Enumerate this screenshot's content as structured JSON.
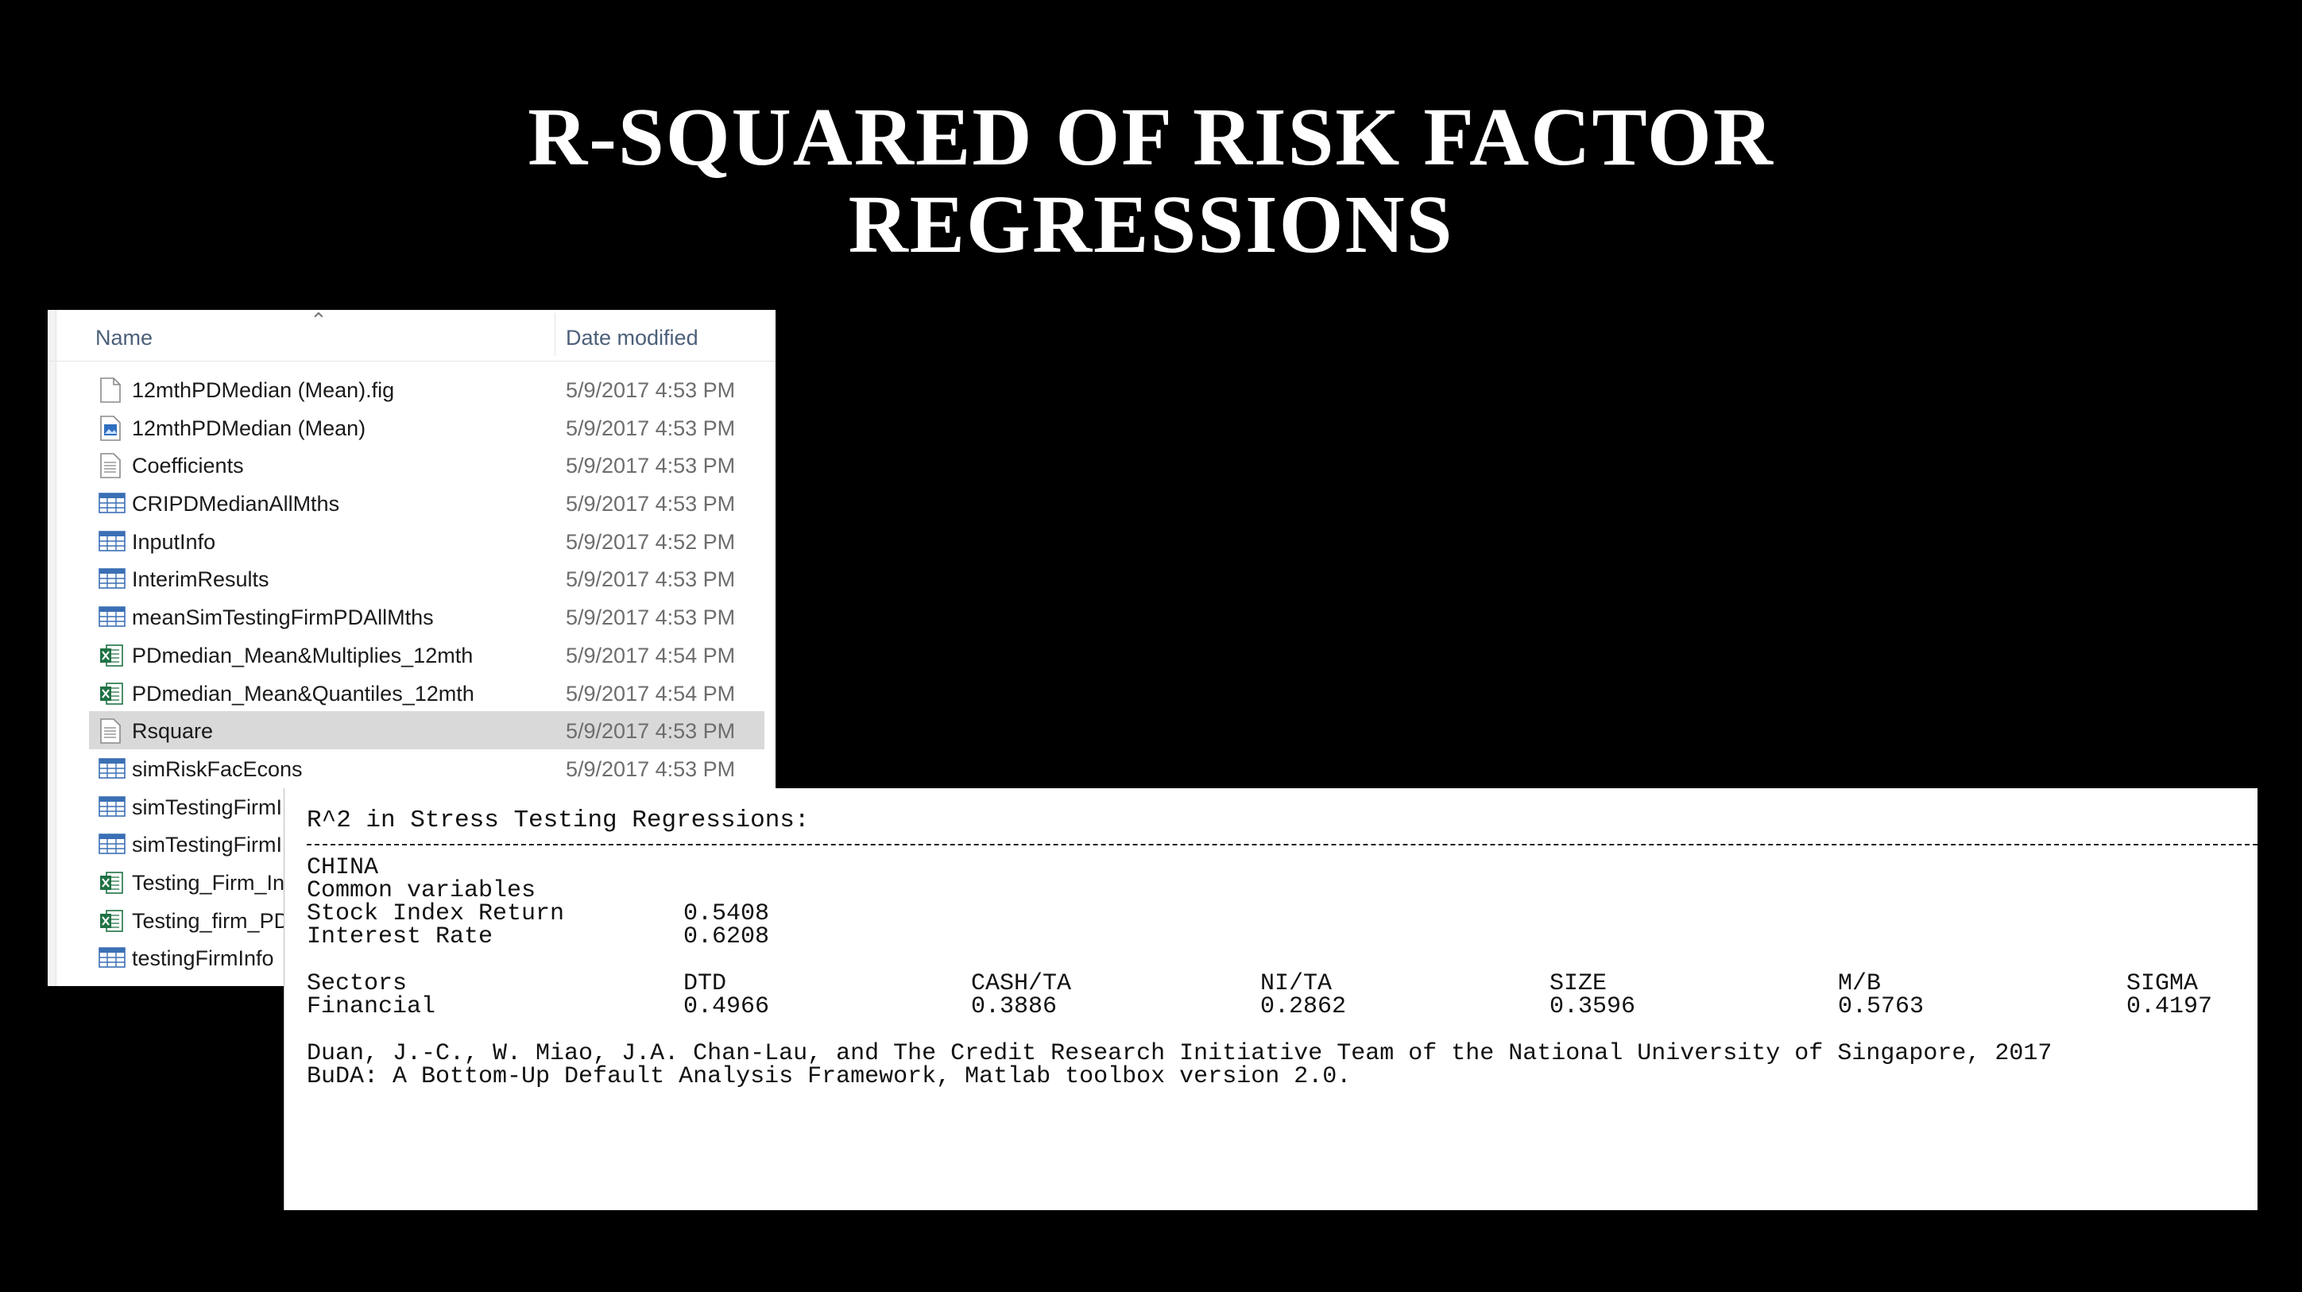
{
  "slide": {
    "title_line1": "R-SQUARED OF RISK FACTOR",
    "title_line2": "REGRESSIONS"
  },
  "explorer": {
    "columns": {
      "name": "Name",
      "date": "Date modified"
    },
    "files": [
      {
        "name": "12mthPDMedian (Mean).fig",
        "date": "5/9/2017 4:53 PM",
        "icon": "fig-file-icon"
      },
      {
        "name": "12mthPDMedian (Mean)",
        "date": "5/9/2017 4:53 PM",
        "icon": "image-file-icon"
      },
      {
        "name": "Coefficients",
        "date": "5/9/2017 4:53 PM",
        "icon": "text-file-icon"
      },
      {
        "name": "CRIPDMedianAllMths",
        "date": "5/9/2017 4:53 PM",
        "icon": "table-file-icon"
      },
      {
        "name": "InputInfo",
        "date": "5/9/2017 4:52 PM",
        "icon": "table-file-icon"
      },
      {
        "name": "InterimResults",
        "date": "5/9/2017 4:53 PM",
        "icon": "table-file-icon"
      },
      {
        "name": "meanSimTestingFirmPDAllMths",
        "date": "5/9/2017 4:53 PM",
        "icon": "table-file-icon"
      },
      {
        "name": "PDmedian_Mean&Multiplies_12mth",
        "date": "5/9/2017 4:54 PM",
        "icon": "excel-file-icon"
      },
      {
        "name": "PDmedian_Mean&Quantiles_12mth",
        "date": "5/9/2017 4:54 PM",
        "icon": "excel-file-icon"
      },
      {
        "name": "Rsquare",
        "date": "5/9/2017 4:53 PM",
        "icon": "text-file-icon",
        "selected": true
      },
      {
        "name": "simRiskFacEcons",
        "date": "5/9/2017 4:53 PM",
        "icon": "table-file-icon"
      },
      {
        "name": "simTestingFirmI",
        "date": "",
        "icon": "table-file-icon"
      },
      {
        "name": "simTestingFirmI",
        "date": "",
        "icon": "table-file-icon"
      },
      {
        "name": "Testing_Firm_Ini",
        "date": "",
        "icon": "excel-file-icon"
      },
      {
        "name": "Testing_firm_PD",
        "date": "",
        "icon": "excel-file-icon"
      },
      {
        "name": "testingFirmInfo",
        "date": "",
        "icon": "table-file-icon"
      }
    ]
  },
  "console": {
    "heading": "R^2 in Stress Testing Regressions:",
    "region": "CHINA",
    "common_label": "Common variables",
    "common_rows": [
      {
        "label": "Stock Index Return",
        "value": "0.5408"
      },
      {
        "label": "Interest Rate",
        "value": "0.6208"
      }
    ],
    "sector_header": [
      "Sectors",
      "DTD",
      "CASH/TA",
      "NI/TA",
      "SIZE",
      "M/B",
      "SIGMA"
    ],
    "sector_row": [
      "Financial",
      "0.4966",
      "0.3886",
      "0.2862",
      "0.3596",
      "0.5763",
      "0.4197"
    ],
    "citation_line1": "Duan, J.-C., W. Miao, J.A. Chan-Lau, and The Credit Research Initiative Team of the National University of Singapore, 2017",
    "citation_line2": "BuDA: A Bottom-Up Default Analysis Framework, Matlab toolbox version 2.0."
  }
}
